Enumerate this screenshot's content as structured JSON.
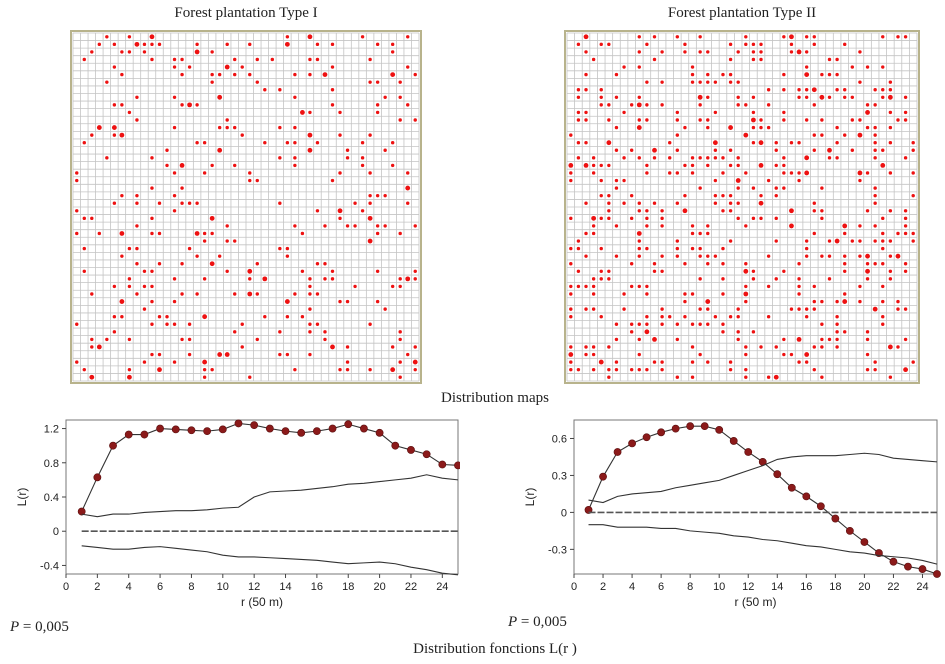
{
  "maps": [
    {
      "title": "Forest plantation Type I",
      "cols": 46,
      "rows": 46,
      "trees": 330,
      "seed": 7
    },
    {
      "title": "Forest plantation Type II",
      "cols": 46,
      "rows": 46,
      "trees": 560,
      "seed": 19
    }
  ],
  "maps_caption": "Distribution maps",
  "functions_caption": "Distribution fonctions L(r )",
  "colors": {
    "tree": "#ee1111",
    "grid": "#c4c4c4",
    "map_border": "#b8b38c",
    "marker": "#8b1a1a",
    "line": "#333333"
  },
  "chart_data": [
    {
      "type": "line",
      "xlabel": "r (50 m)",
      "ylabel": "L(r)",
      "xlim": [
        0,
        25
      ],
      "ylim": [
        -0.5,
        1.3
      ],
      "xticks": [
        0,
        2,
        4,
        6,
        8,
        10,
        12,
        14,
        16,
        18,
        20,
        22,
        24
      ],
      "yticks": [
        -0.4,
        0,
        0.4,
        0.8,
        1.2
      ],
      "ytick_labels": [
        "-0.4",
        "0",
        "0.4",
        "0.8",
        "1.2"
      ],
      "p_label": "P",
      "p_value": "= 0,005",
      "series": [
        {
          "role": "observed",
          "x": [
            1,
            2,
            3,
            4,
            5,
            6,
            7,
            8,
            9,
            10,
            11,
            12,
            13,
            14,
            15,
            16,
            17,
            18,
            19,
            20,
            21,
            22,
            23,
            24,
            25
          ],
          "y": [
            0.23,
            0.63,
            1.0,
            1.13,
            1.13,
            1.2,
            1.19,
            1.18,
            1.17,
            1.19,
            1.26,
            1.24,
            1.2,
            1.17,
            1.15,
            1.17,
            1.2,
            1.25,
            1.2,
            1.15,
            1.0,
            0.95,
            0.9,
            0.78,
            0.77
          ]
        },
        {
          "role": "upper_envelope",
          "x": [
            1,
            2,
            3,
            4,
            5,
            6,
            7,
            8,
            9,
            10,
            11,
            12,
            13,
            14,
            15,
            16,
            17,
            18,
            19,
            20,
            21,
            22,
            23,
            24,
            25
          ],
          "y": [
            0.2,
            0.17,
            0.2,
            0.2,
            0.22,
            0.23,
            0.24,
            0.24,
            0.25,
            0.27,
            0.28,
            0.4,
            0.46,
            0.47,
            0.48,
            0.5,
            0.52,
            0.55,
            0.56,
            0.58,
            0.6,
            0.62,
            0.66,
            0.62,
            0.6
          ]
        },
        {
          "role": "expected",
          "x": [
            1,
            25
          ],
          "y": [
            0,
            0
          ]
        },
        {
          "role": "lower_envelope",
          "x": [
            1,
            2,
            3,
            4,
            5,
            6,
            7,
            8,
            9,
            10,
            11,
            12,
            13,
            14,
            15,
            16,
            17,
            18,
            19,
            20,
            21,
            22,
            23,
            24,
            25
          ],
          "y": [
            -0.17,
            -0.19,
            -0.21,
            -0.21,
            -0.19,
            -0.18,
            -0.2,
            -0.22,
            -0.24,
            -0.28,
            -0.3,
            -0.3,
            -0.31,
            -0.32,
            -0.33,
            -0.34,
            -0.36,
            -0.38,
            -0.37,
            -0.36,
            -0.38,
            -0.42,
            -0.45,
            -0.49,
            -0.51
          ]
        }
      ]
    },
    {
      "type": "line",
      "xlabel": "r (50 m)",
      "ylabel": "L(r)",
      "xlim": [
        0,
        25
      ],
      "ylim": [
        -0.5,
        0.75
      ],
      "xticks": [
        0,
        2,
        4,
        6,
        8,
        10,
        12,
        14,
        16,
        18,
        20,
        22,
        24
      ],
      "yticks": [
        -0.3,
        0,
        0.3,
        0.6
      ],
      "ytick_labels": [
        "-0.3",
        "0",
        "0.3",
        "0.6"
      ],
      "p_label": "P",
      "p_value": "= 0,005",
      "series": [
        {
          "role": "observed",
          "x": [
            1,
            2,
            3,
            4,
            5,
            6,
            7,
            8,
            9,
            10,
            11,
            12,
            13,
            14,
            15,
            16,
            17,
            18,
            19,
            20,
            21,
            22,
            23,
            24,
            25
          ],
          "y": [
            0.02,
            0.29,
            0.49,
            0.56,
            0.61,
            0.65,
            0.68,
            0.7,
            0.7,
            0.67,
            0.58,
            0.49,
            0.41,
            0.31,
            0.2,
            0.13,
            0.05,
            -0.05,
            -0.15,
            -0.24,
            -0.33,
            -0.4,
            -0.44,
            -0.46,
            -0.5
          ]
        },
        {
          "role": "upper_envelope",
          "x": [
            1,
            2,
            3,
            4,
            5,
            6,
            7,
            8,
            9,
            10,
            11,
            12,
            13,
            14,
            15,
            16,
            17,
            18,
            19,
            20,
            21,
            22,
            23,
            24,
            25
          ],
          "y": [
            0.1,
            0.08,
            0.13,
            0.15,
            0.16,
            0.17,
            0.2,
            0.22,
            0.24,
            0.26,
            0.3,
            0.34,
            0.38,
            0.43,
            0.45,
            0.46,
            0.46,
            0.46,
            0.47,
            0.48,
            0.47,
            0.44,
            0.43,
            0.42,
            0.41
          ]
        },
        {
          "role": "expected",
          "x": [
            1,
            25
          ],
          "y": [
            0,
            0
          ]
        },
        {
          "role": "lower_envelope",
          "x": [
            1,
            2,
            3,
            4,
            5,
            6,
            7,
            8,
            9,
            10,
            11,
            12,
            13,
            14,
            15,
            16,
            17,
            18,
            19,
            20,
            21,
            22,
            23,
            24,
            25
          ],
          "y": [
            -0.1,
            -0.1,
            -0.12,
            -0.12,
            -0.12,
            -0.13,
            -0.13,
            -0.15,
            -0.16,
            -0.17,
            -0.19,
            -0.2,
            -0.22,
            -0.23,
            -0.25,
            -0.27,
            -0.28,
            -0.3,
            -0.32,
            -0.33,
            -0.35,
            -0.36,
            -0.37,
            -0.39,
            -0.42
          ]
        }
      ]
    }
  ]
}
